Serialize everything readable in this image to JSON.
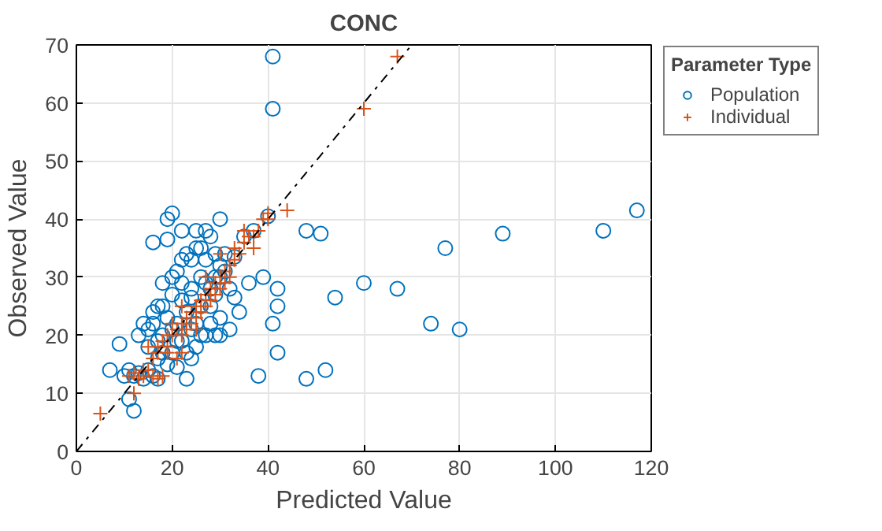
{
  "chart_data": {
    "type": "scatter",
    "title": "CONC",
    "xlabel": "Predicted Value",
    "ylabel": "Observed Value",
    "legend_title": "Parameter Type",
    "xlim": [
      0,
      120
    ],
    "ylim": [
      0,
      70
    ],
    "xticks": [
      0,
      20,
      40,
      60,
      80,
      100,
      120
    ],
    "yticks": [
      0,
      10,
      20,
      30,
      40,
      50,
      60,
      70
    ],
    "grid": true,
    "legend": "right",
    "series": [
      {
        "name": "Population",
        "color": "#0072bd",
        "marker": "circle",
        "x": [
          41,
          41,
          110,
          117,
          89,
          77,
          67,
          80,
          74,
          60,
          54,
          48,
          51,
          48,
          52,
          38,
          42,
          42,
          42,
          41,
          39,
          36,
          34,
          32,
          30,
          29,
          28,
          33,
          35,
          37,
          40,
          7,
          9,
          10,
          11,
          12,
          13,
          14,
          15,
          16,
          17,
          13,
          14,
          15,
          16,
          17,
          18,
          19,
          18,
          20,
          21,
          22,
          23,
          24,
          25,
          20,
          19,
          16,
          19,
          20,
          22,
          25,
          27,
          21,
          23,
          24,
          25,
          27,
          29,
          30,
          31,
          26,
          28,
          30,
          22,
          24,
          20,
          22,
          26,
          28,
          30,
          18,
          19,
          21,
          17,
          15,
          23,
          25,
          27,
          20,
          18,
          24,
          29,
          31,
          33,
          12,
          11,
          23,
          26,
          21,
          16,
          17,
          22,
          28,
          30,
          26,
          29,
          32,
          24,
          27
        ],
        "values": [
          68,
          59,
          38,
          41.5,
          37.5,
          35,
          28,
          21,
          22,
          29,
          26.5,
          38,
          37.5,
          12.5,
          14,
          13,
          17,
          25,
          28,
          22,
          30,
          29,
          24,
          21,
          20,
          20,
          25,
          26.5,
          37,
          38,
          40.5,
          14,
          18.5,
          13,
          9,
          7,
          13.5,
          12.5,
          14,
          13,
          12.5,
          20,
          22,
          21,
          24,
          25,
          25,
          23,
          20,
          21,
          22,
          19,
          17,
          16,
          18,
          17,
          36.5,
          36,
          40,
          41,
          38,
          38,
          38,
          31,
          34,
          33,
          35,
          33,
          34,
          32,
          34,
          30,
          28,
          30,
          29,
          28,
          27,
          26,
          25,
          22,
          23,
          17,
          15,
          14.5,
          16,
          18,
          24,
          22,
          20,
          30,
          29,
          26.5,
          27,
          31,
          33.5,
          13,
          14,
          12.5,
          20,
          19,
          22,
          19,
          33,
          37,
          40,
          35,
          30,
          28,
          21,
          29
        ]
      },
      {
        "name": "Individual",
        "color": "#d95319",
        "marker": "cross",
        "x": [
          5,
          11,
          12,
          13,
          14,
          15,
          16,
          17,
          18,
          12,
          14,
          16,
          17,
          17,
          18,
          19,
          19,
          20,
          20,
          21,
          22,
          22,
          23,
          23,
          24,
          24,
          25,
          25,
          26,
          26,
          27,
          27,
          28,
          28,
          29,
          29,
          30,
          30,
          31,
          31,
          32,
          32,
          33,
          33,
          34,
          35,
          35,
          36,
          37,
          37,
          38,
          39,
          40,
          40,
          44,
          60,
          67,
          21,
          22,
          19,
          15,
          27,
          25,
          30,
          22
        ],
        "values": [
          6.5,
          13,
          13.5,
          12.5,
          13,
          14,
          13,
          12.5,
          13,
          10,
          14,
          16,
          17,
          18,
          19,
          18,
          20,
          20,
          22,
          21,
          22,
          20,
          23,
          21,
          24,
          22,
          25,
          23,
          26,
          24,
          27,
          25,
          28,
          26,
          29,
          27,
          30,
          28,
          31,
          29,
          32,
          30,
          33,
          35,
          34,
          36,
          38,
          37,
          37,
          35,
          38,
          40,
          41,
          40,
          41.5,
          59,
          68,
          16,
          17,
          17,
          18,
          30,
          21,
          34,
          25
        ]
      },
      {
        "type": "line",
        "color": "#000000",
        "marker": "none",
        "line_style": "dashed",
        "x": [
          0,
          70
        ],
        "values": [
          0,
          70
        ]
      }
    ]
  }
}
